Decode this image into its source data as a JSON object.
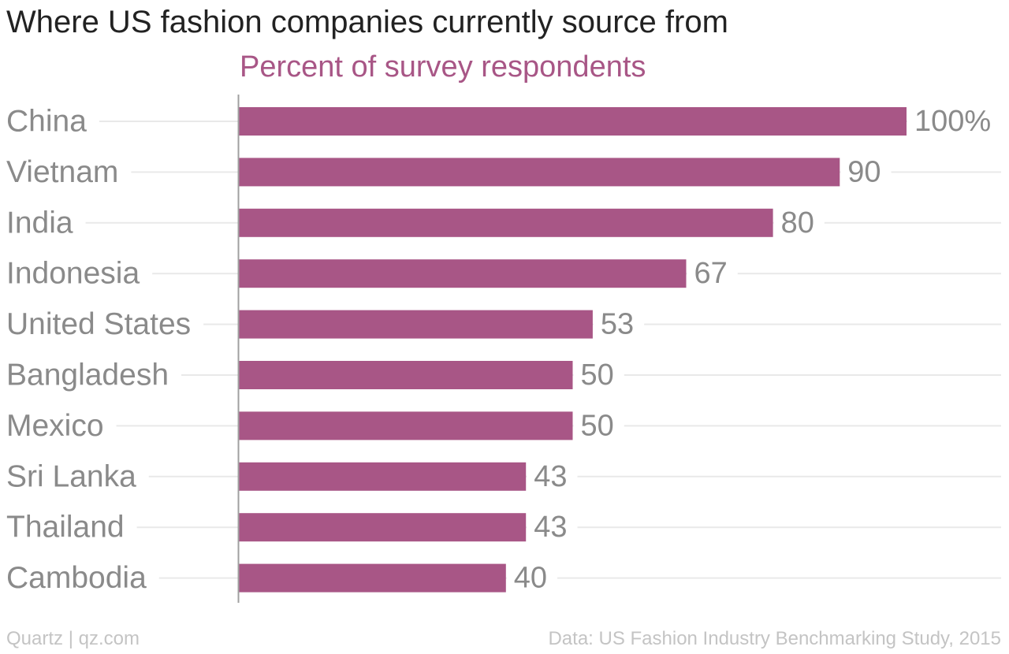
{
  "chart_data": {
    "type": "bar",
    "orientation": "horizontal",
    "title": "Where US fashion companies currently source from",
    "subtitle": "Percent of survey respondents",
    "categories": [
      "China",
      "Vietnam",
      "India",
      "Indonesia",
      "United States",
      "Bangladesh",
      "Mexico",
      "Sri Lanka",
      "Thailand",
      "Cambodia"
    ],
    "values": [
      100,
      90,
      80,
      67,
      53,
      50,
      50,
      43,
      43,
      40
    ],
    "value_labels": [
      "100%",
      "90",
      "80",
      "67",
      "53",
      "50",
      "50",
      "43",
      "43",
      "40"
    ],
    "xlim": [
      0,
      100
    ],
    "grid": true,
    "colors": {
      "bar": "#a85686",
      "subtitle": "#a85686",
      "labels": "#8a8a8a",
      "grid": "#e9e9e9",
      "axis": "#a0a0a0"
    }
  },
  "footer": {
    "left": "Quartz | qz.com",
    "right": "Data: US Fashion Industry Benchmarking Study, 2015"
  }
}
